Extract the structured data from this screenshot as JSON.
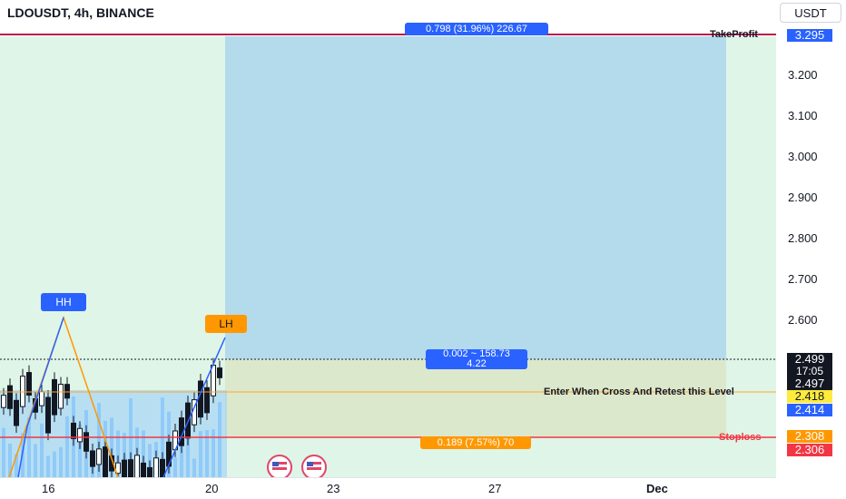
{
  "header": {
    "symbol_title": "LDOUSDT, 4h, BINANCE",
    "currency": "USDT"
  },
  "price_axis": {
    "ticks": [
      "3.200",
      "3.100",
      "3.000",
      "2.900",
      "2.800",
      "2.700",
      "2.600"
    ]
  },
  "price_tags": {
    "take_profit": "3.295",
    "current_price": "2.499",
    "countdown": "17:05",
    "entry_price": "2.497",
    "retest_level": "2.418",
    "line_level": "2.414",
    "stop_level": "2.308",
    "stop_price": "2.306"
  },
  "time_axis": {
    "ticks": [
      "16",
      "20",
      "23",
      "27",
      "Dec"
    ]
  },
  "annotations": {
    "take_profit_label": "TakeProfit",
    "stoploss_label": "Stoploss",
    "retest_label": "Enter When Cross And Retest this Level",
    "target_box": "0.798 (31.96%) 226.67",
    "entry_box_line1": "0.002 ~ 158.73",
    "entry_box_line2": "4.22",
    "stop_box": "0.189 (7.57%) 70",
    "hh_marker": "HH",
    "lh_marker": "LH"
  },
  "colors": {
    "target_zone": "#b3dbec",
    "stop_zone": "#dce8cc",
    "take_profit_line": "#b71c4b",
    "stop_line": "#f23645",
    "retest_line": "#ffa726",
    "accent_blue": "#2962ff",
    "orange": "#ff9800",
    "green_background": "#dff5e8"
  },
  "icons": {
    "event_icon": "us-flag-icon"
  }
}
